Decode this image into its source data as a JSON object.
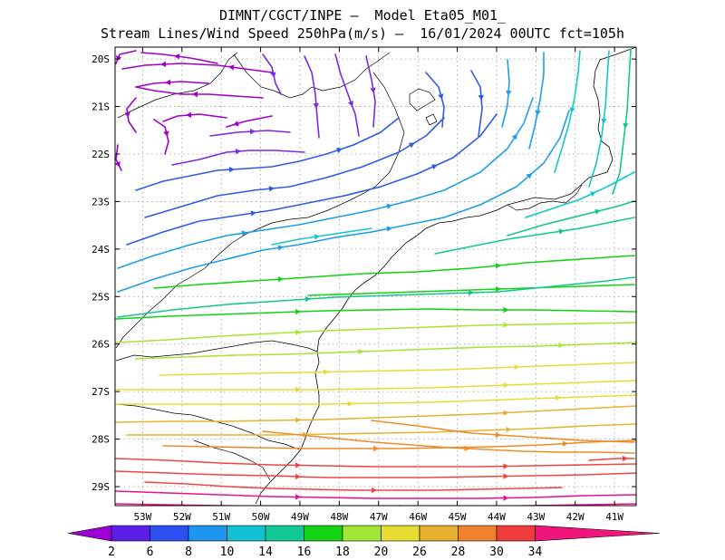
{
  "title": {
    "line1": "DIMNT/CGCT/INPE —  Model Eta05_M01_",
    "line2": "Stream Lines/Wind Speed 250hPa(m/s) —  16/01/2024 00UTC fct=105h"
  },
  "map": {
    "lat_labels": [
      "20S",
      "21S",
      "22S",
      "23S",
      "24S",
      "25S",
      "26S",
      "27S",
      "28S",
      "29S"
    ],
    "lat_values": [
      -20,
      -21,
      -22,
      -23,
      -24,
      -25,
      -26,
      -27,
      -28,
      -29
    ],
    "lon_labels": [
      "53W",
      "52W",
      "51W",
      "50W",
      "49W",
      "48W",
      "47W",
      "46W",
      "45W",
      "44W",
      "43W",
      "42W",
      "41W"
    ],
    "lon_values": [
      -53,
      -52,
      -51,
      -50,
      -49,
      -48,
      -47,
      -46,
      -45,
      -44,
      -43,
      -42,
      -41
    ],
    "lon_range": [
      -53.7,
      -40.45
    ],
    "lat_range": [
      -29.4,
      -19.75
    ],
    "grid": "dotted"
  },
  "colorbar": {
    "labels": [
      "2",
      "6",
      "8",
      "10",
      "14",
      "16",
      "18",
      "20",
      "26",
      "28",
      "30",
      "34"
    ],
    "colors": [
      "#9b00d4",
      "#5a1ee6",
      "#2c4ff0",
      "#1e96f0",
      "#12c2d2",
      "#12c896",
      "#14d214",
      "#a0e632",
      "#e6dc32",
      "#e6af2d",
      "#f0822d",
      "#f03c3c",
      "#f0147d"
    ]
  },
  "streamlines": {
    "speed_colors": [
      "#a000c8",
      "#7b2ae0",
      "#2f5be8",
      "#1e9ee8",
      "#14c8c8",
      "#14c88c",
      "#14d214",
      "#a6e632",
      "#e6dc3c",
      "#e6b432",
      "#f08c28",
      "#f04646",
      "#e8148c"
    ]
  }
}
